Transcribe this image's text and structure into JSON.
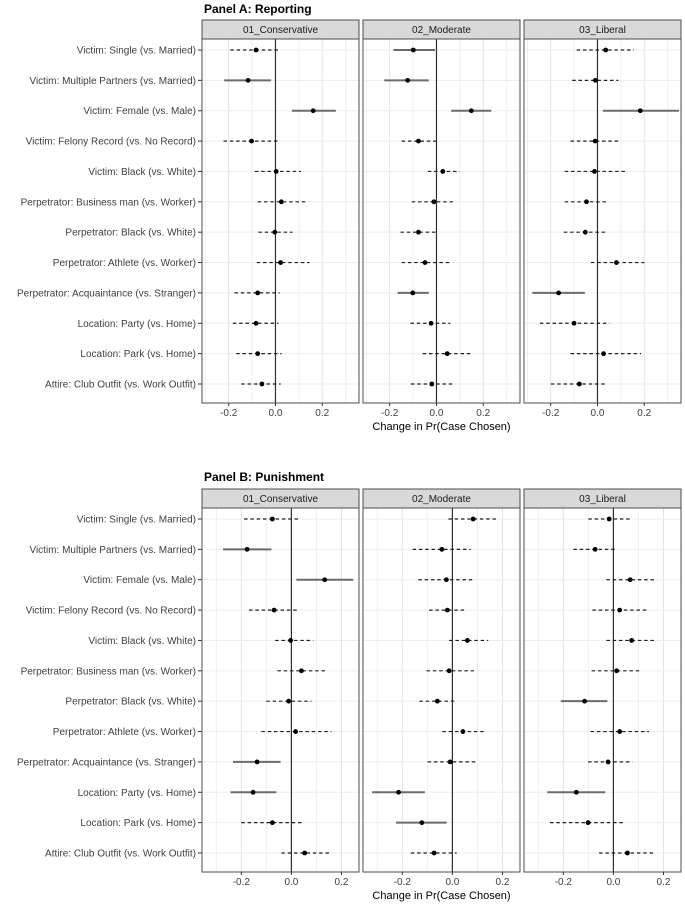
{
  "chart_data": {
    "type": "scatter",
    "subtype": "faceted-dot-whisker-coefficient-plot",
    "xlabel": "Change in Pr(Case Chosen)",
    "x_tick_values": [
      -0.2,
      0.0,
      0.2
    ],
    "x_tick_labels": [
      "-0.2",
      "0.0",
      "0.2"
    ],
    "grid": "light gray vertical lines every 0.1 and one horizontal line per row; darker solid vertical line at 0",
    "whisker_encoding": "solid = interval excludes 0, dashed = interval includes 0",
    "categories": [
      "Victim: Single (vs. Married)",
      "Victim: Multiple Partners (vs. Married)",
      "Victim: Female (vs. Male)",
      "Victim: Felony Record (vs. No Record)",
      "Victim: Black (vs. White)",
      "Perpetrator: Business man (vs. Worker)",
      "Perpetrator: Black (vs. White)",
      "Perpetrator: Athlete (vs. Worker)",
      "Perpetrator: Acquaintance (vs. Stranger)",
      "Location: Party (vs. Home)",
      "Location: Park (vs. Home)",
      "Attire: Club Outfit (vs. Work Outfit)"
    ],
    "facet_labels": [
      "01_Conservative",
      "02_Moderate",
      "03_Liberal"
    ],
    "panels": [
      {
        "title": "Panel A: Reporting",
        "xlim": [
          -0.314,
          0.357
        ],
        "facets": [
          {
            "label": "01_Conservative",
            "points": [
              {
                "est": -0.083,
                "lo": -0.193,
                "hi": 0.022,
                "solid": false
              },
              {
                "est": -0.117,
                "lo": -0.219,
                "hi": -0.019,
                "solid": true
              },
              {
                "est": 0.161,
                "lo": 0.07,
                "hi": 0.258,
                "solid": true
              },
              {
                "est": -0.102,
                "lo": -0.222,
                "hi": 0.015,
                "solid": false
              },
              {
                "est": 0.003,
                "lo": -0.088,
                "hi": 0.109,
                "solid": false
              },
              {
                "est": 0.025,
                "lo": -0.076,
                "hi": 0.136,
                "solid": false
              },
              {
                "est": -0.003,
                "lo": -0.073,
                "hi": 0.073,
                "solid": false
              },
              {
                "est": 0.022,
                "lo": -0.08,
                "hi": 0.146,
                "solid": false
              },
              {
                "est": -0.076,
                "lo": -0.175,
                "hi": 0.018,
                "solid": false
              },
              {
                "est": -0.083,
                "lo": -0.182,
                "hi": 0.012,
                "solid": false
              },
              {
                "est": -0.076,
                "lo": -0.168,
                "hi": 0.026,
                "solid": false
              },
              {
                "est": -0.058,
                "lo": -0.146,
                "hi": 0.022,
                "solid": false
              }
            ]
          },
          {
            "label": "02_Moderate",
            "points": [
              {
                "est": -0.099,
                "lo": -0.184,
                "hi": -0.006,
                "solid": true
              },
              {
                "est": -0.123,
                "lo": -0.223,
                "hi": -0.033,
                "solid": true
              },
              {
                "est": 0.149,
                "lo": 0.063,
                "hi": 0.234,
                "solid": true
              },
              {
                "est": -0.077,
                "lo": -0.149,
                "hi": 0.003,
                "solid": false
              },
              {
                "est": 0.027,
                "lo": -0.037,
                "hi": 0.099,
                "solid": false
              },
              {
                "est": -0.011,
                "lo": -0.106,
                "hi": 0.081,
                "solid": false
              },
              {
                "est": -0.077,
                "lo": -0.154,
                "hi": 0.006,
                "solid": false
              },
              {
                "est": -0.049,
                "lo": -0.149,
                "hi": 0.056,
                "solid": false
              },
              {
                "est": -0.101,
                "lo": -0.166,
                "hi": -0.033,
                "solid": true
              },
              {
                "est": -0.023,
                "lo": -0.111,
                "hi": 0.059,
                "solid": false
              },
              {
                "est": 0.046,
                "lo": -0.059,
                "hi": 0.149,
                "solid": false
              },
              {
                "est": -0.02,
                "lo": -0.109,
                "hi": 0.07,
                "solid": false
              }
            ]
          },
          {
            "label": "03_Liberal",
            "points": [
              {
                "est": 0.035,
                "lo": -0.089,
                "hi": 0.156,
                "solid": false
              },
              {
                "est": -0.009,
                "lo": -0.108,
                "hi": 0.089,
                "solid": false
              },
              {
                "est": 0.183,
                "lo": 0.023,
                "hi": 0.348,
                "solid": true
              },
              {
                "est": -0.01,
                "lo": -0.115,
                "hi": 0.096,
                "solid": false
              },
              {
                "est": -0.013,
                "lo": -0.14,
                "hi": 0.118,
                "solid": false
              },
              {
                "est": -0.047,
                "lo": -0.14,
                "hi": 0.038,
                "solid": false
              },
              {
                "est": -0.052,
                "lo": -0.144,
                "hi": 0.041,
                "solid": false
              },
              {
                "est": 0.081,
                "lo": -0.028,
                "hi": 0.201,
                "solid": false
              },
              {
                "est": -0.166,
                "lo": -0.278,
                "hi": -0.054,
                "solid": true
              },
              {
                "est": -0.1,
                "lo": -0.246,
                "hi": 0.052,
                "solid": false
              },
              {
                "est": 0.026,
                "lo": -0.115,
                "hi": 0.186,
                "solid": false
              },
              {
                "est": -0.077,
                "lo": -0.199,
                "hi": 0.038,
                "solid": false
              }
            ]
          }
        ]
      },
      {
        "title": "Panel B: Punishment",
        "xlim": [
          -0.357,
          0.27
        ],
        "facets": [
          {
            "label": "01_Conservative",
            "points": [
              {
                "est": -0.076,
                "lo": -0.189,
                "hi": 0.033,
                "solid": false
              },
              {
                "est": -0.177,
                "lo": -0.273,
                "hi": -0.08,
                "solid": true
              },
              {
                "est": 0.133,
                "lo": 0.02,
                "hi": 0.247,
                "solid": true
              },
              {
                "est": -0.069,
                "lo": -0.169,
                "hi": 0.029,
                "solid": false
              },
              {
                "est": -0.003,
                "lo": -0.065,
                "hi": 0.088,
                "solid": false
              },
              {
                "est": 0.04,
                "lo": -0.056,
                "hi": 0.144,
                "solid": false
              },
              {
                "est": -0.011,
                "lo": -0.1,
                "hi": 0.08,
                "solid": false
              },
              {
                "est": 0.017,
                "lo": -0.12,
                "hi": 0.16,
                "solid": false
              },
              {
                "est": -0.137,
                "lo": -0.233,
                "hi": -0.043,
                "solid": true
              },
              {
                "est": -0.153,
                "lo": -0.243,
                "hi": -0.06,
                "solid": true
              },
              {
                "est": -0.076,
                "lo": -0.2,
                "hi": 0.049,
                "solid": false
              },
              {
                "est": 0.053,
                "lo": -0.04,
                "hi": 0.16,
                "solid": false
              }
            ]
          },
          {
            "label": "02_Moderate",
            "points": [
              {
                "est": 0.083,
                "lo": -0.016,
                "hi": 0.179,
                "solid": false
              },
              {
                "est": -0.042,
                "lo": -0.159,
                "hi": 0.073,
                "solid": false
              },
              {
                "est": -0.024,
                "lo": -0.136,
                "hi": 0.086,
                "solid": false
              },
              {
                "est": -0.02,
                "lo": -0.093,
                "hi": 0.057,
                "solid": false
              },
              {
                "est": 0.06,
                "lo": -0.013,
                "hi": 0.143,
                "solid": false
              },
              {
                "est": -0.013,
                "lo": -0.103,
                "hi": 0.086,
                "solid": false
              },
              {
                "est": -0.06,
                "lo": -0.132,
                "hi": 0.016,
                "solid": false
              },
              {
                "est": 0.042,
                "lo": -0.04,
                "hi": 0.136,
                "solid": false
              },
              {
                "est": -0.009,
                "lo": -0.099,
                "hi": 0.097,
                "solid": false
              },
              {
                "est": -0.215,
                "lo": -0.321,
                "hi": -0.11,
                "solid": true
              },
              {
                "est": -0.122,
                "lo": -0.225,
                "hi": -0.023,
                "solid": true
              },
              {
                "est": -0.073,
                "lo": -0.166,
                "hi": 0.017,
                "solid": false
              }
            ]
          },
          {
            "label": "03_Liberal",
            "points": [
              {
                "est": -0.017,
                "lo": -0.1,
                "hi": 0.069,
                "solid": false
              },
              {
                "est": -0.073,
                "lo": -0.16,
                "hi": 0.012,
                "solid": false
              },
              {
                "est": 0.067,
                "lo": -0.028,
                "hi": 0.166,
                "solid": false
              },
              {
                "est": 0.025,
                "lo": -0.084,
                "hi": 0.132,
                "solid": false
              },
              {
                "est": 0.073,
                "lo": -0.028,
                "hi": 0.165,
                "solid": false
              },
              {
                "est": 0.013,
                "lo": -0.087,
                "hi": 0.113,
                "solid": false
              },
              {
                "est": -0.115,
                "lo": -0.21,
                "hi": -0.024,
                "solid": true
              },
              {
                "est": 0.025,
                "lo": -0.091,
                "hi": 0.142,
                "solid": false
              },
              {
                "est": -0.021,
                "lo": -0.101,
                "hi": 0.076,
                "solid": false
              },
              {
                "est": -0.148,
                "lo": -0.264,
                "hi": -0.033,
                "solid": true
              },
              {
                "est": -0.101,
                "lo": -0.253,
                "hi": 0.047,
                "solid": false
              },
              {
                "est": 0.056,
                "lo": -0.057,
                "hi": 0.166,
                "solid": false
              }
            ]
          }
        ]
      }
    ]
  },
  "colors": {
    "background": "#ffffff",
    "panel_border": "#4d4d4d",
    "strip_fill": "#d9d9d9",
    "strip_border": "#4d4d4d",
    "strip_text": "#1a1a1a",
    "grid_major": "#e2e2e2",
    "grid_minor": "#efefef",
    "row_grid": "#ededed",
    "zero_line": "#2e2e2e",
    "whisker_solid": "#6b6b6b",
    "whisker_dashed": "#1f1f1f",
    "point": "#000000",
    "axis_text": "#404040",
    "axis_title": "#000000",
    "tick_mark": "#333333"
  }
}
